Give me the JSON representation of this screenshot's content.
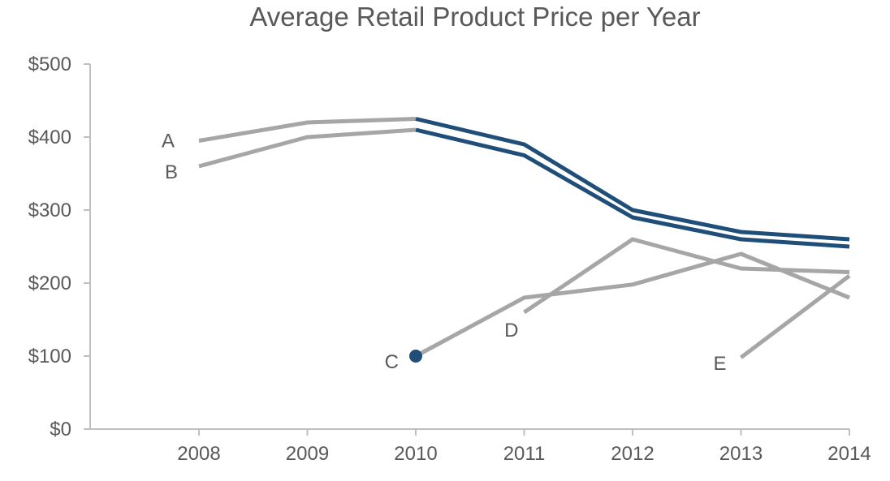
{
  "chart_data": {
    "type": "line",
    "title": "Average Retail Product Price per Year",
    "xlabel": "",
    "ylabel": "",
    "x": [
      "2008",
      "2009",
      "2010",
      "2011",
      "2012",
      "2013",
      "2014"
    ],
    "y_ticks": [
      "$0",
      "$100",
      "$200",
      "$300",
      "$400",
      "$500"
    ],
    "ylim": [
      0,
      500
    ],
    "grid": false,
    "colors": {
      "highlight": "#1f4e79",
      "muted": "#a6a6a6",
      "axis": "#bfbfbf",
      "text": "#595959"
    },
    "series": [
      {
        "name": "A",
        "x": [
          "2008",
          "2009",
          "2010",
          "2011",
          "2012",
          "2013",
          "2014"
        ],
        "values": [
          395,
          420,
          425,
          390,
          300,
          270,
          260
        ],
        "highlight_from": "2010"
      },
      {
        "name": "B",
        "x": [
          "2008",
          "2009",
          "2010",
          "2011",
          "2012",
          "2013",
          "2014"
        ],
        "values": [
          360,
          400,
          410,
          375,
          290,
          260,
          250
        ],
        "highlight_from": "2010"
      },
      {
        "name": "C",
        "x": [
          "2010",
          "2011",
          "2012",
          "2013",
          "2014"
        ],
        "values": [
          100,
          180,
          198,
          240,
          180
        ],
        "marker_at": "2010"
      },
      {
        "name": "D",
        "x": [
          "2011",
          "2012",
          "2013",
          "2014"
        ],
        "values": [
          160,
          260,
          220,
          215
        ]
      },
      {
        "name": "E",
        "x": [
          "2013",
          "2014"
        ],
        "values": [
          98,
          210
        ]
      }
    ]
  }
}
